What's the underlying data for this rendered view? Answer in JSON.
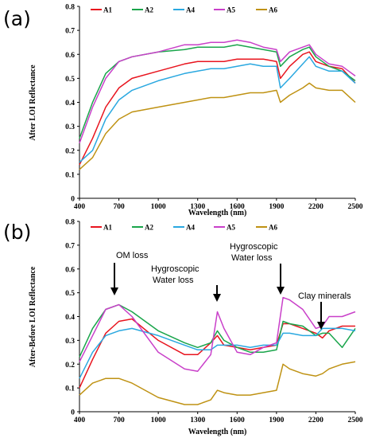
{
  "panels": [
    "(a)",
    "(b)"
  ],
  "colors": {
    "A1": "#e8141e",
    "A2": "#1aa54b",
    "A4": "#2aa8e0",
    "A5": "#c940c9",
    "A6": "#bf9213"
  },
  "annotations": {
    "om_loss": "OM loss",
    "hygro1": [
      "Hygroscopic",
      "Water loss"
    ],
    "hygro2": [
      "Hygroscopic",
      "Water loss"
    ],
    "clay": "Clay minerals"
  },
  "chart_data": [
    {
      "type": "line",
      "panel": "(a)",
      "xlabel": "Wavelength (nm)",
      "ylabel": "After LOI Reflectance",
      "xlim": [
        400,
        2500
      ],
      "ylim": [
        0,
        0.8
      ],
      "xticks": [
        "400",
        "700",
        "1000",
        "1300",
        "1600",
        "1900",
        "2200",
        "2500"
      ],
      "yticks": [
        "0",
        "0.1",
        "0.2",
        "0.3",
        "0.4",
        "0.5",
        "0.6",
        "0.7",
        "0.8"
      ],
      "legend_position": "top",
      "x": [
        400,
        500,
        600,
        700,
        800,
        1000,
        1200,
        1300,
        1400,
        1500,
        1600,
        1700,
        1800,
        1900,
        1930,
        2000,
        2100,
        2150,
        2200,
        2300,
        2400,
        2500
      ],
      "series": [
        {
          "name": "A1",
          "values": [
            0.14,
            0.25,
            0.38,
            0.46,
            0.5,
            0.53,
            0.56,
            0.57,
            0.57,
            0.57,
            0.58,
            0.58,
            0.58,
            0.57,
            0.5,
            0.55,
            0.6,
            0.61,
            0.57,
            0.55,
            0.54,
            0.48
          ]
        },
        {
          "name": "A2",
          "values": [
            0.25,
            0.4,
            0.52,
            0.57,
            0.59,
            0.61,
            0.62,
            0.63,
            0.63,
            0.63,
            0.64,
            0.63,
            0.62,
            0.61,
            0.55,
            0.59,
            0.62,
            0.63,
            0.59,
            0.55,
            0.53,
            0.49
          ]
        },
        {
          "name": "A4",
          "values": [
            0.15,
            0.2,
            0.33,
            0.41,
            0.45,
            0.49,
            0.52,
            0.53,
            0.54,
            0.54,
            0.55,
            0.56,
            0.55,
            0.55,
            0.46,
            0.5,
            0.56,
            0.59,
            0.55,
            0.53,
            0.53,
            0.48
          ]
        },
        {
          "name": "A5",
          "values": [
            0.23,
            0.38,
            0.5,
            0.57,
            0.59,
            0.61,
            0.64,
            0.64,
            0.65,
            0.65,
            0.66,
            0.65,
            0.63,
            0.62,
            0.57,
            0.61,
            0.63,
            0.64,
            0.6,
            0.56,
            0.55,
            0.51
          ]
        },
        {
          "name": "A6",
          "values": [
            0.12,
            0.17,
            0.27,
            0.33,
            0.36,
            0.38,
            0.4,
            0.41,
            0.42,
            0.42,
            0.43,
            0.44,
            0.44,
            0.45,
            0.4,
            0.43,
            0.46,
            0.48,
            0.46,
            0.45,
            0.45,
            0.4
          ]
        }
      ]
    },
    {
      "type": "line",
      "panel": "(b)",
      "xlabel": "Wavelength (nm)",
      "ylabel": "After-Before LOI Reflectance",
      "xlim": [
        400,
        2500
      ],
      "ylim": [
        0,
        0.8
      ],
      "xticks": [
        "400",
        "700",
        "1000",
        "1300",
        "1600",
        "1900",
        "2200",
        "2500"
      ],
      "yticks": [
        "0",
        "0.1",
        "0.2",
        "0.3",
        "0.4",
        "0.5",
        "0.6",
        "0.7",
        "0.8"
      ],
      "legend_position": "top",
      "x": [
        400,
        500,
        600,
        700,
        800,
        1000,
        1200,
        1300,
        1400,
        1450,
        1500,
        1600,
        1700,
        1800,
        1900,
        1950,
        2000,
        2100,
        2200,
        2250,
        2300,
        2400,
        2500
      ],
      "series": [
        {
          "name": "A1",
          "values": [
            0.1,
            0.22,
            0.33,
            0.38,
            0.39,
            0.3,
            0.24,
            0.24,
            0.29,
            0.32,
            0.28,
            0.27,
            0.26,
            0.27,
            0.28,
            0.37,
            0.37,
            0.35,
            0.33,
            0.31,
            0.34,
            0.36,
            0.36
          ]
        },
        {
          "name": "A2",
          "values": [
            0.23,
            0.35,
            0.43,
            0.45,
            0.42,
            0.34,
            0.29,
            0.27,
            0.29,
            0.34,
            0.3,
            0.27,
            0.25,
            0.25,
            0.26,
            0.38,
            0.37,
            0.36,
            0.32,
            0.33,
            0.33,
            0.27,
            0.35
          ]
        },
        {
          "name": "A4",
          "values": [
            0.14,
            0.25,
            0.32,
            0.34,
            0.35,
            0.32,
            0.28,
            0.26,
            0.26,
            0.28,
            0.28,
            0.28,
            0.27,
            0.28,
            0.28,
            0.33,
            0.33,
            0.32,
            0.32,
            0.35,
            0.35,
            0.35,
            0.34
          ]
        },
        {
          "name": "A5",
          "values": [
            0.21,
            0.32,
            0.43,
            0.45,
            0.4,
            0.25,
            0.18,
            0.17,
            0.24,
            0.42,
            0.35,
            0.25,
            0.24,
            0.27,
            0.29,
            0.48,
            0.47,
            0.43,
            0.35,
            0.36,
            0.4,
            0.4,
            0.42
          ]
        },
        {
          "name": "A6",
          "values": [
            0.07,
            0.12,
            0.14,
            0.14,
            0.12,
            0.06,
            0.03,
            0.03,
            0.05,
            0.09,
            0.08,
            0.07,
            0.07,
            0.08,
            0.09,
            0.2,
            0.18,
            0.16,
            0.15,
            0.16,
            0.18,
            0.2,
            0.21
          ]
        }
      ]
    }
  ]
}
